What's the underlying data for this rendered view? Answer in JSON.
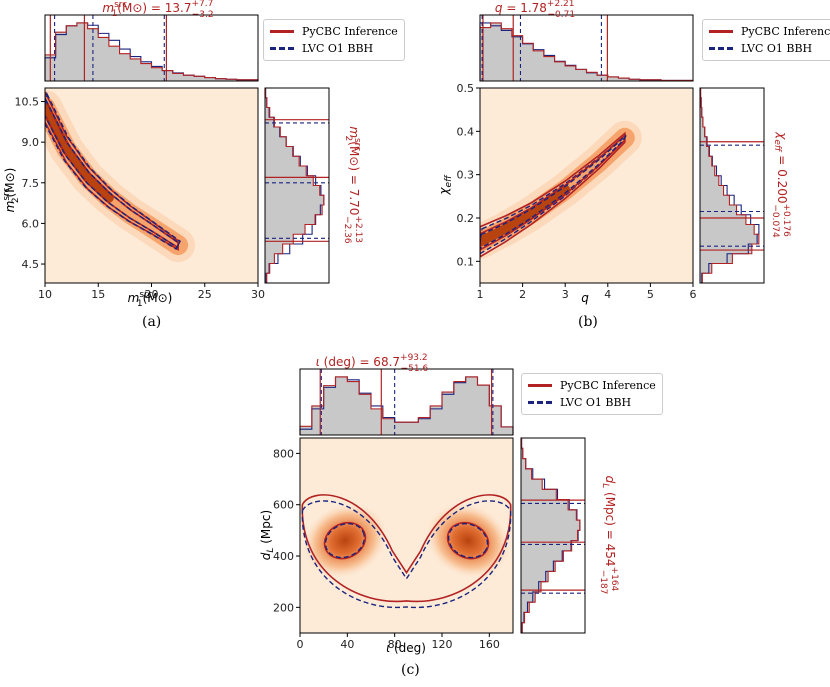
{
  "colors": {
    "pycbc": "#b22222",
    "lvc": "#1a237e",
    "hist_fill": "#c8c8c8",
    "density_low": "#fdebd8",
    "density_high": "#b8430f",
    "title_text": "#b22222"
  },
  "legend": {
    "pycbc_label": "PyCBC Inference",
    "lvc_label": "LVC O1 BBH"
  },
  "chart_data": [
    {
      "type": "corner",
      "caption": "(a)",
      "title": "m₁ˢʳᶜ(M⊙) = 13.7 +7.7 −3.2",
      "title_parts": {
        "lhs": "m",
        "sub": "1",
        "sup": "src",
        "unit": "(M⊙) = 13.7",
        "up": "+7.7",
        "down": "−3.2"
      },
      "side_title_parts": {
        "lhs": "m",
        "sub": "2",
        "sup": "src",
        "unit": "(M⊙) = 7.70",
        "up": "+2.13",
        "down": "−2.36"
      },
      "xlabel_parts": {
        "lhs": "m",
        "sub": "1",
        "sup": "src",
        "unit": "(M⊙)"
      },
      "ylabel_parts": {
        "lhs": "m",
        "sub": "2",
        "sup": "src",
        "unit": "(M⊙)"
      },
      "xlim": [
        10,
        30
      ],
      "ylim": [
        3.8,
        11.0
      ],
      "xticks": [
        10,
        15,
        20,
        25,
        30
      ],
      "xtick_labels": [
        "10",
        "15",
        "20",
        "25",
        "30"
      ],
      "yticks": [
        4.5,
        6.0,
        7.5,
        9.0,
        10.5
      ],
      "ytick_labels": [
        "4.5",
        "6.0",
        "7.5",
        "9.0",
        "10.5"
      ],
      "x_quantiles": {
        "pycbc": [
          10.5,
          13.7,
          21.4
        ],
        "lvc": [
          10.9,
          14.5,
          21.2
        ]
      },
      "y_quantiles": {
        "pycbc": [
          5.34,
          7.7,
          9.83
        ],
        "lvc": [
          5.45,
          7.5,
          9.71
        ]
      },
      "density": {
        "kind": "curve",
        "x": [
          10,
          12,
          14,
          16,
          18,
          20,
          22.5
        ],
        "y": [
          10.3,
          8.75,
          7.7,
          6.95,
          6.35,
          5.85,
          5.2
        ]
      },
      "x_hist": {
        "pycbc": [
          0.45,
          0.84,
          0.95,
          1.0,
          0.9,
          0.75,
          0.6,
          0.47,
          0.38,
          0.3,
          0.23,
          0.18,
          0.13,
          0.1,
          0.08,
          0.06,
          0.04,
          0.03,
          0.02,
          0.02
        ],
        "lvc": [
          0.4,
          0.8,
          0.95,
          1.0,
          0.96,
          0.82,
          0.7,
          0.55,
          0.42,
          0.33,
          0.25,
          0.18,
          0.14,
          0.1,
          0.08,
          0.06,
          0.04,
          0.03,
          0.02,
          0.02
        ]
      },
      "y_hist": {
        "pycbc": [
          0.03,
          0.08,
          0.16,
          0.3,
          0.48,
          0.68,
          0.85,
          0.97,
          1.0,
          0.93,
          0.82,
          0.7,
          0.58,
          0.47,
          0.36,
          0.26,
          0.16,
          0.08,
          0.03,
          0.01
        ],
        "lvc": [
          0.02,
          0.07,
          0.22,
          0.42,
          0.64,
          0.8,
          0.86,
          0.94,
          1.0,
          0.95,
          0.86,
          0.72,
          0.6,
          0.48,
          0.36,
          0.25,
          0.15,
          0.07,
          0.03,
          0.01
        ]
      }
    },
    {
      "type": "corner",
      "caption": "(b)",
      "title": "q = 1.78 +2.21 −0.71",
      "title_parts": {
        "lhs": "q",
        "sub": "",
        "sup": "",
        "unit": " = 1.78",
        "up": "+2.21",
        "down": "−0.71"
      },
      "side_title_parts": {
        "lhs": "χ",
        "sub": "eff",
        "sup": "",
        "unit": " = 0.200",
        "up": "+0.176",
        "down": "−0.074"
      },
      "xlabel_parts": {
        "lhs": "q",
        "sub": "",
        "sup": "",
        "unit": ""
      },
      "ylabel_parts": {
        "lhs": "χ",
        "sub": "eff",
        "sup": "",
        "unit": ""
      },
      "xlim": [
        1,
        6
      ],
      "ylim": [
        0.05,
        0.5
      ],
      "xticks": [
        1,
        2,
        3,
        4,
        5,
        6
      ],
      "xtick_labels": [
        "1",
        "2",
        "3",
        "4",
        "5",
        "6"
      ],
      "yticks": [
        0.1,
        0.2,
        0.3,
        0.4,
        0.5
      ],
      "ytick_labels": [
        "0.1",
        "0.2",
        "0.3",
        "0.4",
        "0.5"
      ],
      "x_quantiles": {
        "pycbc": [
          1.07,
          1.78,
          3.99
        ],
        "lvc": [
          1.05,
          1.95,
          3.85
        ]
      },
      "y_quantiles": {
        "pycbc": [
          0.126,
          0.2,
          0.376
        ],
        "lvc": [
          0.135,
          0.215,
          0.368
        ]
      },
      "density": {
        "kind": "curve",
        "x": [
          1.0,
          1.6,
          2.2,
          3.0,
          3.8,
          4.4
        ],
        "y": [
          0.145,
          0.175,
          0.21,
          0.265,
          0.33,
          0.385
        ]
      },
      "x_hist": {
        "pycbc": [
          0.92,
          1.0,
          0.9,
          0.78,
          0.65,
          0.52,
          0.42,
          0.33,
          0.26,
          0.2,
          0.15,
          0.1,
          0.07,
          0.05,
          0.03,
          0.02,
          0.02,
          0.01,
          0.01,
          0.01
        ],
        "lvc": [
          1.0,
          0.95,
          0.87,
          0.76,
          0.64,
          0.54,
          0.44,
          0.34,
          0.27,
          0.2,
          0.14,
          0.1,
          0.07,
          0.05,
          0.03,
          0.02,
          0.02,
          0.01,
          0.01,
          0.01
        ]
      },
      "y_hist": {
        "pycbc": [
          0.04,
          0.2,
          0.55,
          0.88,
          1.0,
          0.92,
          0.78,
          0.62,
          0.5,
          0.4,
          0.32,
          0.25,
          0.2,
          0.15,
          0.11,
          0.08,
          0.05,
          0.03,
          0.02,
          0.01
        ],
        "lvc": [
          0.03,
          0.15,
          0.46,
          0.82,
          0.97,
          1.0,
          0.86,
          0.7,
          0.58,
          0.46,
          0.36,
          0.28,
          0.21,
          0.16,
          0.12,
          0.08,
          0.05,
          0.03,
          0.02,
          0.01
        ]
      }
    },
    {
      "type": "corner",
      "caption": "(c)",
      "title": "ι (deg) = 68.7 +93.2 −51.6",
      "title_parts": {
        "lhs": "ι",
        "sub": "",
        "sup": "",
        "unit": " (deg) = 68.7",
        "up": "+93.2",
        "down": "−51.6"
      },
      "side_title_parts": {
        "lhs": "d",
        "sub": "L",
        "sup": "",
        "unit": " (Mpc) = 454",
        "up": "+164",
        "down": "−187"
      },
      "xlabel_parts": {
        "lhs": "ι",
        "sub": "",
        "sup": "",
        "unit": " (deg)"
      },
      "ylabel_parts": {
        "lhs": "d",
        "sub": "L",
        "sup": "",
        "unit": " (Mpc)"
      },
      "xlim": [
        0,
        180
      ],
      "ylim": [
        100,
        860
      ],
      "xticks": [
        0,
        40,
        80,
        120,
        160
      ],
      "xtick_labels": [
        "0",
        "40",
        "80",
        "120",
        "160"
      ],
      "yticks": [
        200,
        400,
        600,
        800
      ],
      "ytick_labels": [
        "200",
        "400",
        "600",
        "800"
      ],
      "x_quantiles": {
        "pycbc": [
          17.1,
          68.7,
          161.9
        ],
        "lvc": [
          18,
          80,
          163
        ]
      },
      "y_quantiles": {
        "pycbc": [
          267,
          454,
          618
        ],
        "lvc": [
          255,
          445,
          605
        ]
      },
      "density": {
        "kind": "blobs",
        "centers": [
          [
            38,
            460
          ],
          [
            142,
            460
          ]
        ],
        "spread": [
          17,
          95
        ],
        "tilt": [
          -0.45,
          0.45
        ]
      },
      "x_hist": {
        "pycbc": [
          0.15,
          0.5,
          0.85,
          1.0,
          0.92,
          0.7,
          0.45,
          0.28,
          0.22,
          0.22,
          0.3,
          0.5,
          0.74,
          0.92,
          1.0,
          0.86,
          0.5,
          0.14
        ],
        "lvc": [
          0.1,
          0.45,
          0.82,
          1.0,
          0.95,
          0.72,
          0.5,
          0.3,
          0.22,
          0.22,
          0.28,
          0.45,
          0.7,
          0.9,
          1.0,
          0.86,
          0.5,
          0.14
        ]
      },
      "y_hist": {
        "pycbc": [
          0.02,
          0.06,
          0.14,
          0.24,
          0.34,
          0.46,
          0.58,
          0.72,
          0.86,
          0.96,
          1.0,
          0.94,
          0.8,
          0.6,
          0.36,
          0.18,
          0.08,
          0.03,
          0.01
        ],
        "lvc": [
          0.02,
          0.05,
          0.11,
          0.2,
          0.3,
          0.42,
          0.55,
          0.7,
          0.85,
          0.97,
          1.0,
          0.95,
          0.82,
          0.62,
          0.4,
          0.2,
          0.08,
          0.03,
          0.01
        ]
      }
    }
  ]
}
